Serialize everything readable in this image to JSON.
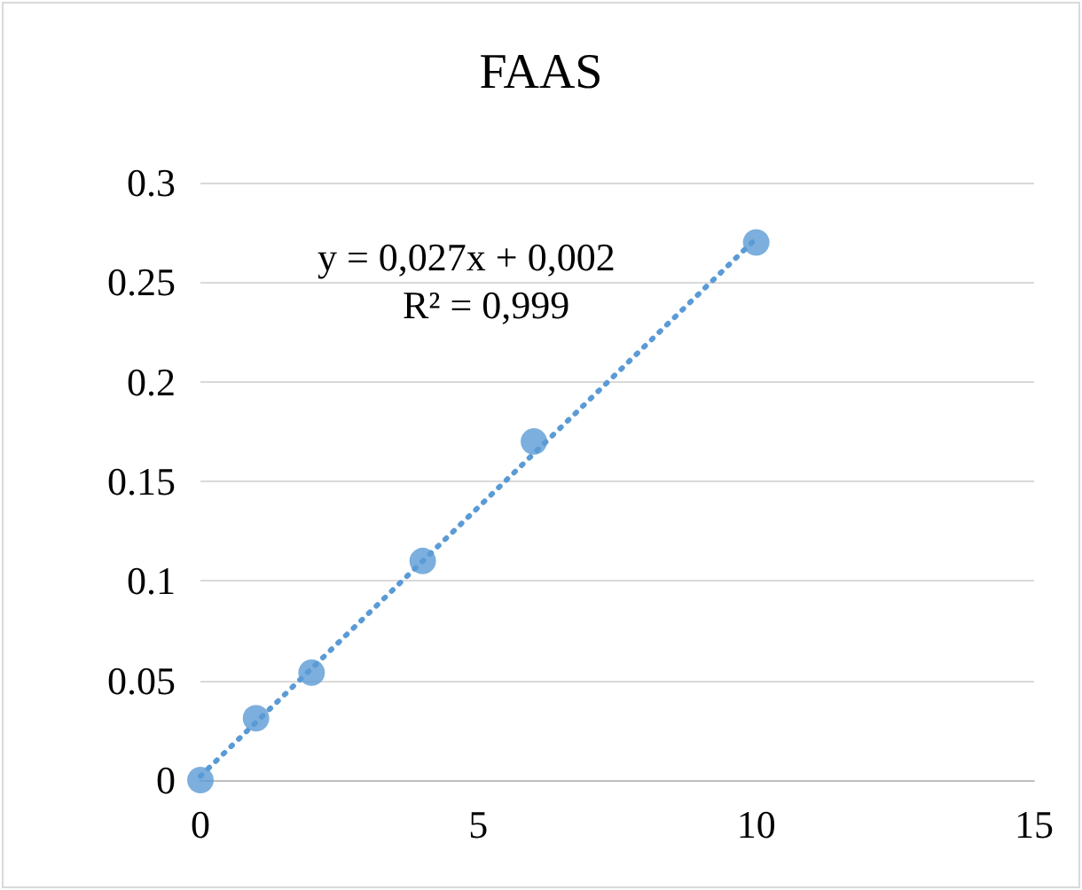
{
  "chart_data": {
    "type": "scatter",
    "title": "FAAS",
    "x": [
      0,
      1,
      2,
      4,
      6,
      10
    ],
    "series": [
      {
        "color": "#5b9bd5",
        "values": [
          0,
          0.031,
          0.054,
          0.11,
          0.17,
          0.27
        ]
      },
      {
        "type": "line",
        "x": [
          0,
          10
        ],
        "values": [
          0.002,
          0.272
        ],
        "color": "#5b9bd5",
        "marker": "none",
        "line_style": "dotted"
      }
    ],
    "xlim": [
      0,
      15
    ],
    "xticks": [
      0,
      5,
      10,
      15
    ],
    "ylim": [
      0,
      0.3
    ],
    "yticks": [
      0,
      0.05,
      0.1,
      0.15,
      0.2,
      0.25,
      0.3
    ],
    "grid": "y",
    "marker": "circle",
    "annotations": [
      "y = 0,027x + 0,002",
      "R² = 0,999"
    ]
  }
}
